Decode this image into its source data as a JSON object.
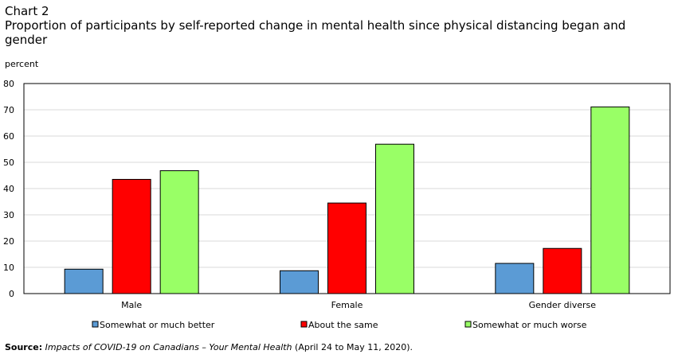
{
  "header": {
    "chart_number": "Chart 2",
    "title": "Proportion of participants by self-reported change in mental health since physical distancing began and gender"
  },
  "source": {
    "label": "Source:",
    "title": "Impacts of COVID-19 on Canadians – Your Mental Health",
    "dates": "(April 24 to May 11, 2020)."
  },
  "chart_data": {
    "type": "bar",
    "ylabel": "percent",
    "xlabel": "",
    "ylim": [
      0,
      80
    ],
    "yticks": [
      0,
      10,
      20,
      30,
      40,
      50,
      60,
      70,
      80
    ],
    "grid": true,
    "legend_position": "bottom",
    "categories": [
      "Male",
      "Female",
      "Gender diverse"
    ],
    "series": [
      {
        "name": "Somewhat or much better",
        "color": "#5b9bd5",
        "values": [
          9.3,
          8.7,
          11.5
        ]
      },
      {
        "name": "About the same",
        "color": "#ff0000",
        "values": [
          43.5,
          34.5,
          17.2
        ]
      },
      {
        "name": "Somewhat or much worse",
        "color": "#99ff66",
        "values": [
          46.8,
          56.9,
          71.1
        ]
      }
    ]
  }
}
